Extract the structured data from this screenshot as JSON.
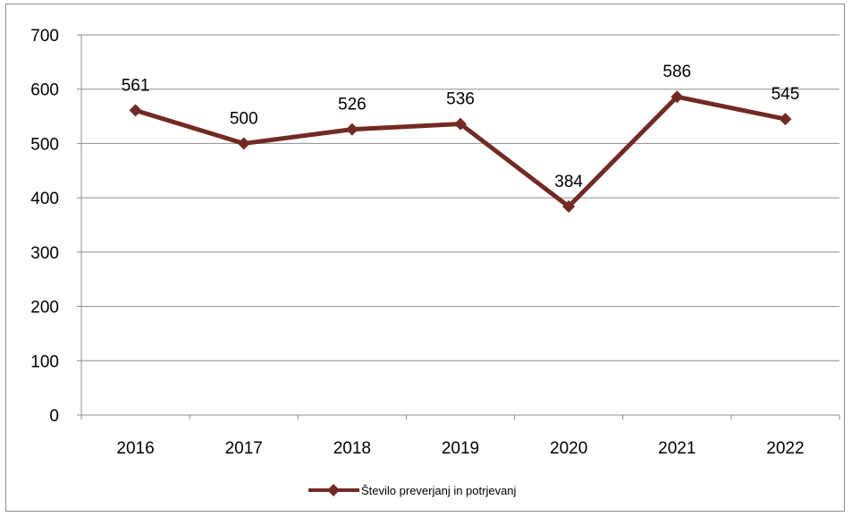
{
  "chart_data": {
    "type": "line",
    "categories": [
      "2016",
      "2017",
      "2018",
      "2019",
      "2020",
      "2021",
      "2022"
    ],
    "series": [
      {
        "name": "Število preverjanj in potrjevanj",
        "values": [
          561,
          500,
          526,
          536,
          384,
          586,
          545
        ],
        "color": "#722a24",
        "marker": "diamond"
      }
    ],
    "data_labels": [
      "561",
      "500",
      "526",
      "536",
      "384",
      "586",
      "545"
    ],
    "y_ticks": [
      "0",
      "100",
      "200",
      "300",
      "400",
      "500",
      "600",
      "700"
    ],
    "ylim": [
      0,
      700
    ],
    "grid": true,
    "legend_position": "bottom",
    "title": "",
    "xlabel": "",
    "ylabel": ""
  }
}
